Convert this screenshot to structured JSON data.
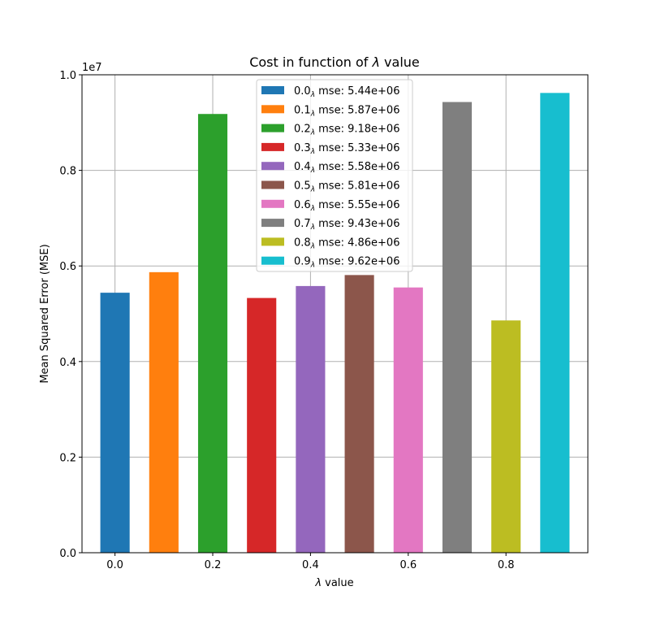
{
  "chart_data": {
    "type": "bar",
    "title": "Cost in function of λ value",
    "title_parts": {
      "before": "Cost in function of ",
      "symbol": "λ",
      "after": " value"
    },
    "xlabel": "λ value",
    "xlabel_parts": {
      "symbol": "λ",
      "after": " value"
    },
    "ylabel": "Mean Squared Error (MSE)",
    "y_offset_label": "1e7",
    "xlim": [
      -0.0675,
      0.9675
    ],
    "ylim": [
      0,
      1.0
    ],
    "grid": true,
    "legend_position": "upper center",
    "x_ticks": [
      {
        "value": 0.0,
        "label": "0.0"
      },
      {
        "value": 0.2,
        "label": "0.2"
      },
      {
        "value": 0.4,
        "label": "0.4"
      },
      {
        "value": 0.6,
        "label": "0.6"
      },
      {
        "value": 0.8,
        "label": "0.8"
      }
    ],
    "y_ticks": [
      {
        "value": 0.0,
        "label": "0.0"
      },
      {
        "value": 0.2,
        "label": "0.2"
      },
      {
        "value": 0.4,
        "label": "0.4"
      },
      {
        "value": 0.6,
        "label": "0.6"
      },
      {
        "value": 0.8,
        "label": "0.8"
      },
      {
        "value": 1.0,
        "label": "1.0"
      }
    ],
    "series": [
      {
        "x": 0.0,
        "value": 0.544,
        "color": "#1f77b4",
        "label_prefix": "0.0",
        "label_sub": "λ",
        "label_suffix": " mse: 5.44e+06"
      },
      {
        "x": 0.1,
        "value": 0.587,
        "color": "#ff7f0e",
        "label_prefix": "0.1",
        "label_sub": "λ",
        "label_suffix": " mse: 5.87e+06"
      },
      {
        "x": 0.2,
        "value": 0.918,
        "color": "#2ca02c",
        "label_prefix": "0.2",
        "label_sub": "λ",
        "label_suffix": " mse: 9.18e+06"
      },
      {
        "x": 0.3,
        "value": 0.533,
        "color": "#d62728",
        "label_prefix": "0.3",
        "label_sub": "λ",
        "label_suffix": " mse: 5.33e+06"
      },
      {
        "x": 0.4,
        "value": 0.558,
        "color": "#9467bd",
        "label_prefix": "0.4",
        "label_sub": "λ",
        "label_suffix": " mse: 5.58e+06"
      },
      {
        "x": 0.5,
        "value": 0.581,
        "color": "#8c564b",
        "label_prefix": "0.5",
        "label_sub": "λ",
        "label_suffix": " mse: 5.81e+06"
      },
      {
        "x": 0.6,
        "value": 0.555,
        "color": "#e377c2",
        "label_prefix": "0.6",
        "label_sub": "λ",
        "label_suffix": " mse: 5.55e+06"
      },
      {
        "x": 0.7,
        "value": 0.943,
        "color": "#7f7f7f",
        "label_prefix": "0.7",
        "label_sub": "λ",
        "label_suffix": " mse: 9.43e+06"
      },
      {
        "x": 0.8,
        "value": 0.486,
        "color": "#bcbd22",
        "label_prefix": "0.8",
        "label_sub": "λ",
        "label_suffix": " mse: 4.86e+06"
      },
      {
        "x": 0.9,
        "value": 0.962,
        "color": "#17becf",
        "label_prefix": "0.9",
        "label_sub": "λ",
        "label_suffix": " mse: 9.62e+06"
      }
    ]
  }
}
